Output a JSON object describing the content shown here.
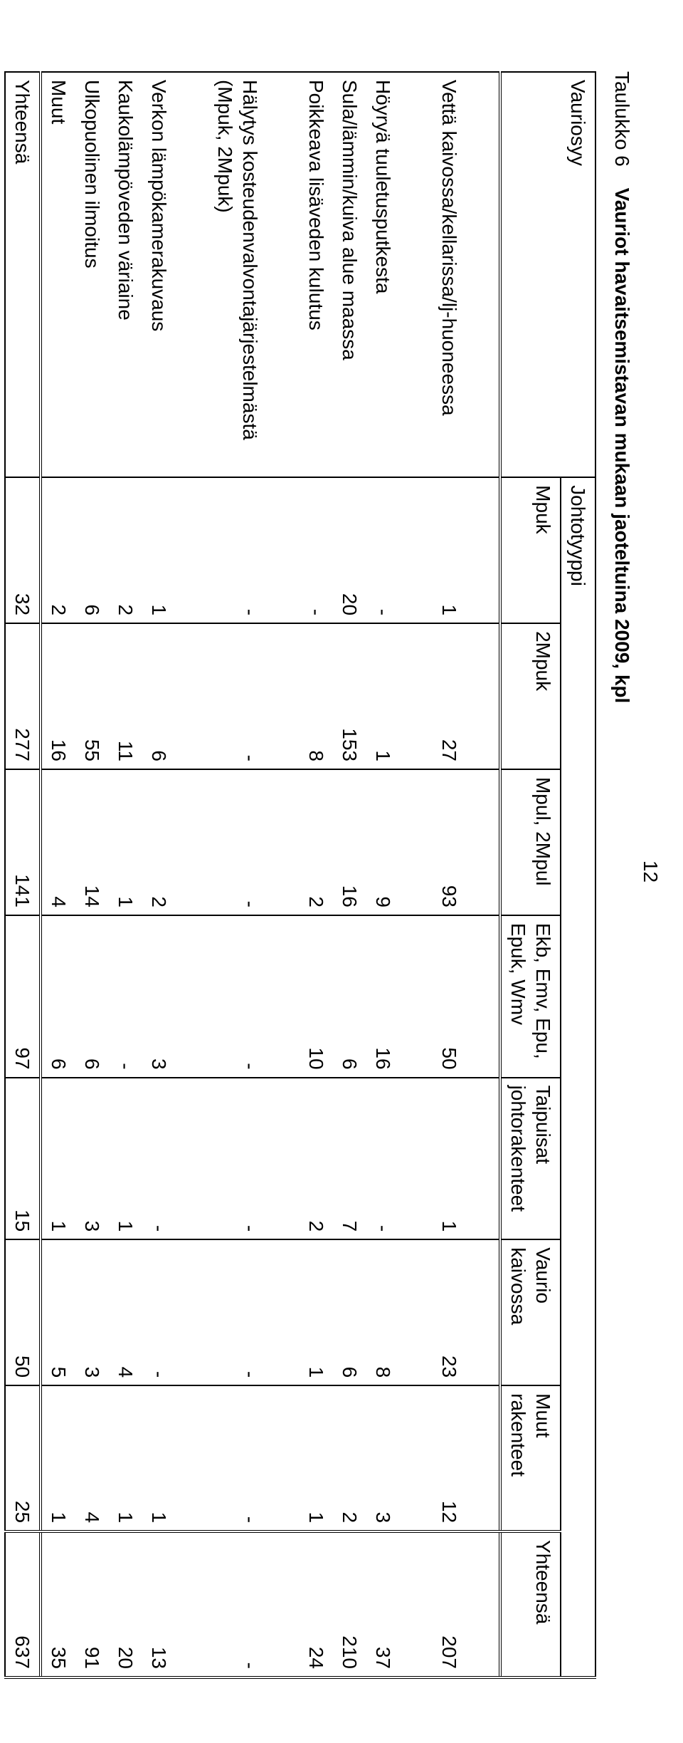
{
  "page_number": "12",
  "caption_label": "Taulukko 6",
  "caption_title": "Vauriot havaitsemistavan mukaan jaoteltuina 2009, kpl",
  "header_rowlabel": "Vauriosyy",
  "header_group": "Johtotyyppi",
  "columns": [
    "Mpuk",
    "2Mpuk",
    "Mpul, 2Mpul",
    "Ekb, Emv, Epu, Epuk, Wmv",
    "Taipuisat johtorakenteet",
    "Vaurio kaivossa",
    "Muut rakenteet",
    "Yhteensä"
  ],
  "rows": [
    {
      "label": "Vettä kaivossa/kellarissa/lj-huoneessa",
      "vals": [
        "1",
        "27",
        "93",
        "50",
        "1",
        "23",
        "12",
        "207"
      ]
    },
    {
      "label": "Höyryä tuuletusputkesta",
      "vals": [
        "-",
        "1",
        "9",
        "16",
        "-",
        "8",
        "3",
        "37"
      ]
    },
    {
      "label": "Sula/lämmin/kuiva alue maassa",
      "vals": [
        "20",
        "153",
        "16",
        "6",
        "7",
        "6",
        "2",
        "210"
      ]
    },
    {
      "label": "Poikkeava lisäveden kulutus",
      "vals": [
        "-",
        "8",
        "2",
        "10",
        "2",
        "1",
        "1",
        "24"
      ]
    },
    {
      "label": "Hälytys kosteudenvalvontajärjestelmästä (Mpuk, 2Mpuk)",
      "vals": [
        "-",
        "-",
        "-",
        "-",
        "-",
        "-",
        "-",
        "-"
      ]
    },
    {
      "label": "Verkon lämpökamerakuvaus",
      "vals": [
        "1",
        "6",
        "2",
        "3",
        "-",
        "-",
        "1",
        "13"
      ]
    },
    {
      "label": "Kaukolämpöveden väriaine",
      "vals": [
        "2",
        "11",
        "1",
        "-",
        "1",
        "4",
        "1",
        "20"
      ]
    },
    {
      "label": "Ulkopuolinen ilmoitus",
      "vals": [
        "6",
        "55",
        "14",
        "6",
        "3",
        "3",
        "4",
        "91"
      ]
    },
    {
      "label": "Muut",
      "vals": [
        "2",
        "16",
        "4",
        "6",
        "1",
        "5",
        "1",
        "35"
      ]
    }
  ],
  "footer_label": "Yhteensä",
  "footer_vals": [
    "32",
    "277",
    "141",
    "97",
    "15",
    "50",
    "25",
    "637"
  ]
}
